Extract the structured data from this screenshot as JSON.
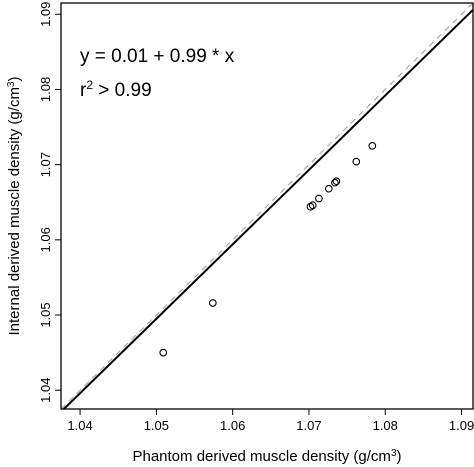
{
  "chart_data": {
    "type": "scatter",
    "xlabel": "Phantom derived muscle density (g/cm",
    "xlabel_sup": "3",
    "xlabel_tail": ")",
    "ylabel": "Internal derived muscle density (g/cm",
    "ylabel_sup": "3",
    "ylabel_tail": ")",
    "xlim": [
      1.0375,
      1.0915
    ],
    "ylim": [
      1.0375,
      1.0915
    ],
    "xticks": [
      1.04,
      1.05,
      1.06,
      1.07,
      1.08,
      1.09
    ],
    "yticks": [
      1.04,
      1.05,
      1.06,
      1.07,
      1.08,
      1.09
    ],
    "xtick_labels": [
      "1.04",
      "1.05",
      "1.06",
      "1.07",
      "1.08",
      "1.09"
    ],
    "ytick_labels": [
      "1.04",
      "1.05",
      "1.06",
      "1.07",
      "1.08",
      "1.09"
    ],
    "grid": false,
    "points": [
      {
        "x": 1.0509,
        "y": 1.045
      },
      {
        "x": 1.0574,
        "y": 1.0516
      },
      {
        "x": 1.0702,
        "y": 1.0644
      },
      {
        "x": 1.0705,
        "y": 1.0646
      },
      {
        "x": 1.0713,
        "y": 1.0655
      },
      {
        "x": 1.0726,
        "y": 1.0668
      },
      {
        "x": 1.0734,
        "y": 1.0676
      },
      {
        "x": 1.0736,
        "y": 1.0678
      },
      {
        "x": 1.0762,
        "y": 1.0704
      },
      {
        "x": 1.0783,
        "y": 1.0725
      }
    ],
    "fit_line": {
      "intercept": 0.01,
      "slope": 0.99,
      "color": "#000000"
    },
    "identity_line": {
      "slope": 1,
      "intercept": 0,
      "color": "#aaaaaa",
      "style": "dashed"
    },
    "annotations": {
      "equation": "y = 0.01 + 0.99 * x",
      "r2_prefix": "r",
      "r2_sup": "2",
      "r2_suffix": " > 0.99"
    }
  }
}
